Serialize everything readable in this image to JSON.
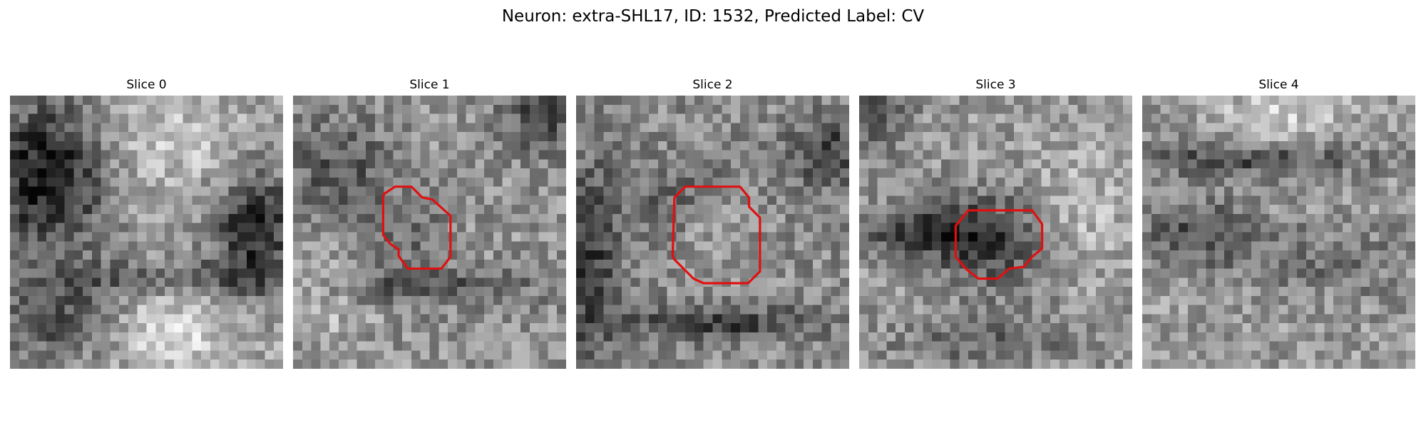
{
  "figure": {
    "title": "Neuron: extra-SHL17, ID: 1532, Predicted Label: CV",
    "contour_color": "#e01010"
  },
  "panels": [
    {
      "title": "Slice 0",
      "has_contour": false,
      "seed": 11,
      "pattern": "s0"
    },
    {
      "title": "Slice 1",
      "has_contour": true,
      "seed": 23,
      "pattern": "s1"
    },
    {
      "title": "Slice 2",
      "has_contour": true,
      "seed": 37,
      "pattern": "s2"
    },
    {
      "title": "Slice 3",
      "has_contour": true,
      "seed": 53,
      "pattern": "s3"
    },
    {
      "title": "Slice 4",
      "has_contour": false,
      "seed": 71,
      "pattern": "s4"
    }
  ]
}
